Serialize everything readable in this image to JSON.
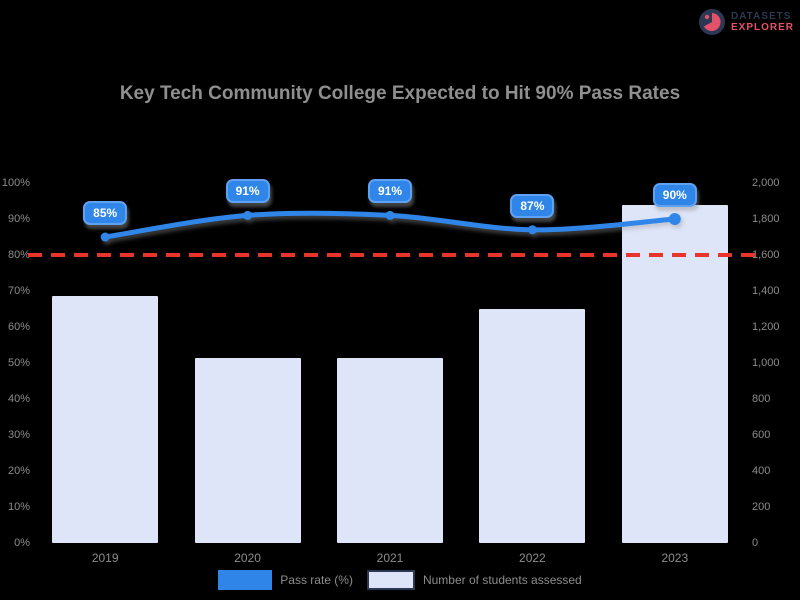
{
  "brand": {
    "line1": "DATASETS",
    "line2": "EXPLORER"
  },
  "colors": {
    "background": "#000000",
    "title_text": "#8f8f8f",
    "axis_text": "#8c8c8c",
    "line_blue": "#2f86e8",
    "badge_border": "#5fa2f2",
    "bar_fill": "#dfe5f9",
    "target_red": "#e8342a",
    "brand_navy": "#2c3853",
    "brand_red": "#e2526b"
  },
  "chart_data": {
    "type": "bar",
    "subtype": "combo-bar-line",
    "title": "Key Tech Community College Expected to Hit 90% Pass Rates",
    "categories": [
      "2019",
      "2020",
      "2021",
      "2022",
      "2023"
    ],
    "series": [
      {
        "name": "Pass rate (%)",
        "type": "line",
        "axis": "left",
        "color": "#2f86e8",
        "values": [
          85,
          91,
          91,
          87,
          90
        ],
        "point_labels": [
          "85%",
          "91%",
          "91%",
          "87%",
          "90%"
        ]
      },
      {
        "name": "Number of students assessed",
        "type": "bar",
        "axis": "right",
        "color": "#dfe5f9",
        "values": [
          1370,
          1030,
          1030,
          1300,
          1880
        ]
      }
    ],
    "target_line": {
      "value": 80,
      "axis": "left",
      "color": "#e8342a",
      "style": "dashed"
    },
    "left_axis": {
      "min": 0,
      "max": 100,
      "step": 10,
      "suffix": "%",
      "tick_labels": [
        "100%",
        "90%",
        "80%",
        "70%",
        "60%",
        "50%",
        "40%",
        "30%",
        "20%",
        "10%",
        "0%"
      ]
    },
    "right_axis": {
      "min": 0,
      "max": 2000,
      "step": 200,
      "tick_labels": [
        "2,000",
        "1,800",
        "1,600",
        "1,400",
        "1,200",
        "1,000",
        "800",
        "600",
        "400",
        "200",
        "0"
      ]
    },
    "legend_position": "bottom",
    "grid": false
  }
}
